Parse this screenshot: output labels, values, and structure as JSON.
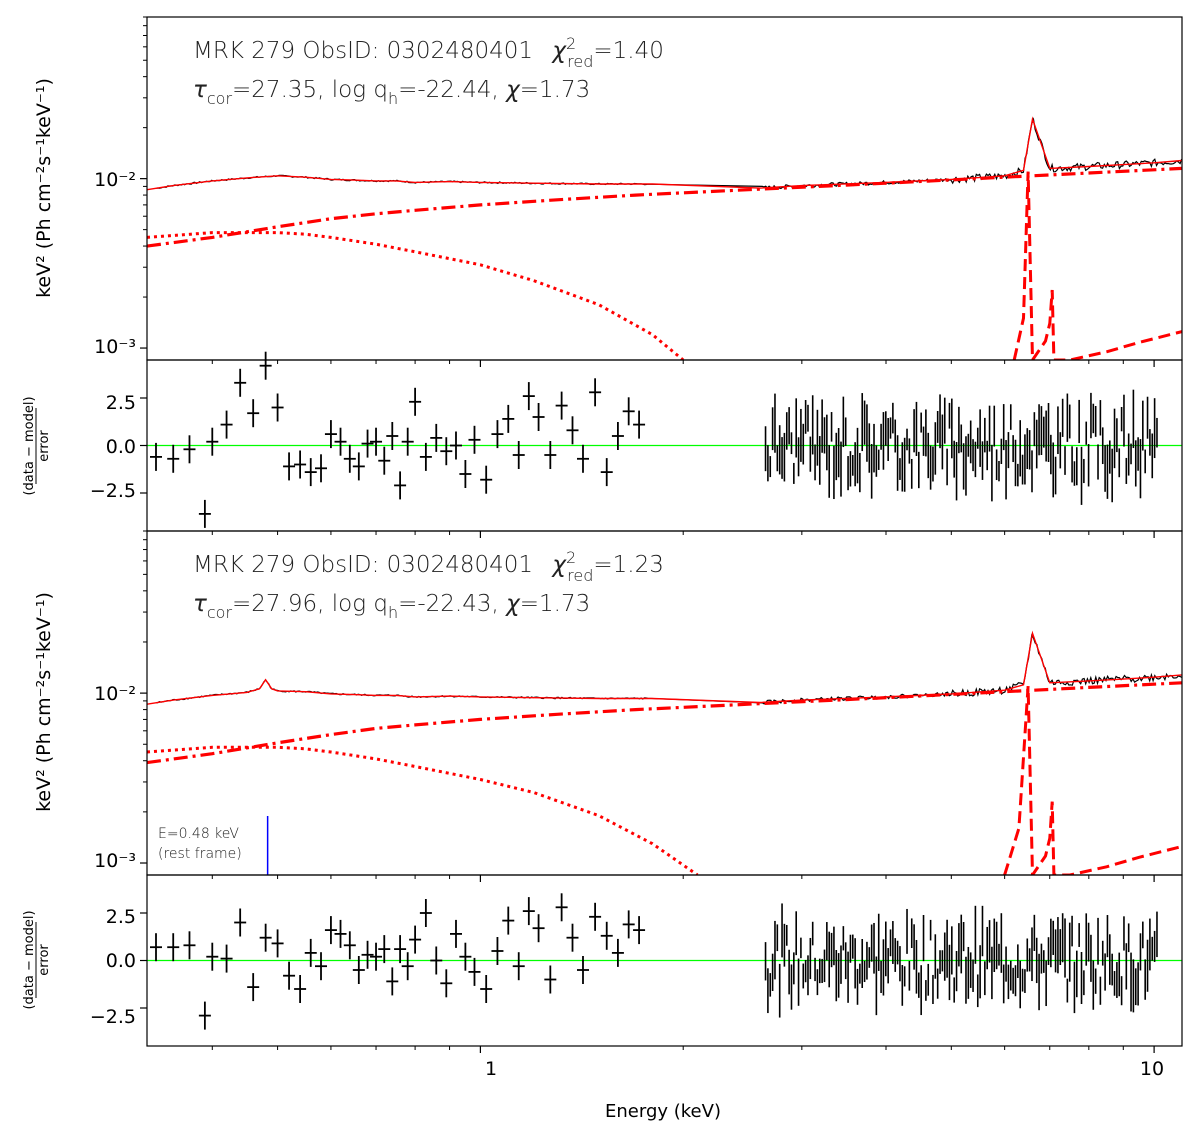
{
  "figure": {
    "xlabel": "Energy (keV)",
    "x_ticks": [
      "1",
      "10"
    ],
    "colors": {
      "data": "#000000",
      "model": "#ff0000",
      "zero_line": "#00ff00",
      "marker": "#0000ff"
    }
  },
  "panels": [
    {
      "title_line1": "MRK 279  ObsID: 0302480401",
      "chi_symbol": "χ",
      "chi_sup": "2",
      "chi_sub": "red",
      "chi_value": "=1.40",
      "tau_symbol": "τ",
      "tau_sub": "cor",
      "tau_value": "=27.35, log q",
      "q_sub": "h",
      "q_value": "=-22.44, ",
      "chi2_symbol": "χ",
      "chi2_value": "=1.73",
      "ylabel": "keV² (Ph cm⁻²s⁻¹keV⁻¹)",
      "y_ticks": [
        "10⁻²",
        "10⁻³"
      ]
    },
    {
      "title_line1": "MRK 279  ObsID: 0302480401",
      "chi_symbol": "χ",
      "chi_sup": "2",
      "chi_sub": "red",
      "chi_value": "=1.23",
      "tau_symbol": "τ",
      "tau_sub": "cor",
      "tau_value": "=27.96, log q",
      "q_sub": "h",
      "q_value": "=-22.43, ",
      "chi2_symbol": "χ",
      "chi2_value": "=1.73",
      "ylabel": "keV² (Ph cm⁻²s⁻¹keV⁻¹)",
      "y_ticks": [
        "10⁻²",
        "10⁻³"
      ],
      "marker_label_1": "E=0.48 keV",
      "marker_label_2": "(rest frame)"
    }
  ],
  "residual_panels": [
    {
      "ylabel_num": "(data − model)",
      "ylabel_den": "error",
      "y_ticks": [
        "2.5",
        "0.0",
        "−2.5"
      ]
    },
    {
      "ylabel_num": "(data − model)",
      "ylabel_den": "error",
      "y_ticks": [
        "2.5",
        "0.0",
        "−2.5"
      ]
    }
  ],
  "chart_data": [
    {
      "type": "line",
      "title": "MRK 279 ObsID: 0302480401 χ²red=1.40",
      "xscale": "log",
      "yscale": "log",
      "xlim": [
        0.32,
        11
      ],
      "ylim": [
        0.00085,
        0.09
      ],
      "xlabel": "Energy (keV)",
      "ylabel": "keV² (Ph cm⁻²s⁻¹keV⁻¹)",
      "series": [
        {
          "name": "data+total model (black/red solid)",
          "x": [
            0.32,
            0.35,
            0.4,
            0.45,
            0.5,
            0.55,
            0.6,
            0.65,
            0.7,
            0.75,
            0.8,
            0.9,
            1.0,
            1.2,
            1.5,
            1.8,
            2.6,
            3,
            4,
            5,
            6,
            6.4,
            6.6,
            7,
            8,
            9,
            10,
            11
          ],
          "values": [
            0.0086,
            0.0091,
            0.0097,
            0.0101,
            0.0104,
            0.0102,
            0.0099,
            0.0098,
            0.0097,
            0.0097,
            0.0095,
            0.0096,
            0.0095,
            0.0094,
            0.0093,
            0.0093,
            0.0088,
            0.0091,
            0.0095,
            0.0099,
            0.0104,
            0.0112,
            0.0225,
            0.0115,
            0.0118,
            0.0121,
            0.0124,
            0.0128
          ]
        },
        {
          "name": "dash-dot component",
          "x": [
            0.32,
            0.4,
            0.5,
            0.6,
            0.7,
            0.8,
            1.0,
            1.3,
            1.7,
            2.5,
            4,
            6,
            8,
            11
          ],
          "values": [
            0.004,
            0.0045,
            0.0052,
            0.0058,
            0.0062,
            0.0065,
            0.007,
            0.0075,
            0.008,
            0.0086,
            0.0094,
            0.0102,
            0.0108,
            0.0115
          ]
        },
        {
          "name": "dotted component",
          "x": [
            0.32,
            0.4,
            0.5,
            0.55,
            0.6,
            0.7,
            0.8,
            1.0,
            1.2,
            1.5,
            1.8,
            2.0
          ],
          "values": [
            0.0045,
            0.0048,
            0.0048,
            0.0047,
            0.0045,
            0.0041,
            0.0037,
            0.0031,
            0.0025,
            0.0018,
            0.0012,
            0.00085
          ]
        },
        {
          "name": "dashed Fe lines",
          "x": [
            6.2,
            6.4,
            6.5,
            6.6,
            6.9,
            7.0,
            7.06,
            7.1,
            7.5,
            8.5,
            9.5,
            11
          ],
          "values": [
            0.00085,
            0.0015,
            0.011,
            0.00085,
            0.0011,
            0.0014,
            0.0022,
            0.00085,
            0.00085,
            0.00095,
            0.00108,
            0.00125
          ]
        }
      ]
    },
    {
      "type": "scatter",
      "title": "Residuals (panel 1)",
      "xscale": "log",
      "xlim": [
        0.32,
        11
      ],
      "ylim": [
        -4.5,
        4.5
      ],
      "ylabel": "(data − model)/error",
      "x": [
        0.33,
        0.35,
        0.37,
        0.39,
        0.4,
        0.42,
        0.44,
        0.46,
        0.48,
        0.5,
        0.52,
        0.54,
        0.56,
        0.58,
        0.6,
        0.62,
        0.64,
        0.66,
        0.68,
        0.7,
        0.72,
        0.74,
        0.76,
        0.78,
        0.8,
        0.83,
        0.86,
        0.89,
        0.92,
        0.95,
        0.98,
        1.02,
        1.06,
        1.1,
        1.14,
        1.18,
        1.22,
        1.27,
        1.32,
        1.37,
        1.42,
        1.48,
        1.54,
        1.6,
        1.66,
        1.72
      ],
      "values": [
        -0.6,
        -0.7,
        -0.2,
        -3.6,
        0.2,
        1.1,
        3.3,
        1.7,
        4.2,
        2.0,
        -1.1,
        -1.0,
        -1.4,
        -1.2,
        0.6,
        0.2,
        -0.7,
        -1.1,
        0.1,
        0.2,
        -0.8,
        0.5,
        -2.1,
        0.2,
        2.3,
        -0.6,
        0.4,
        -0.3,
        0.0,
        -1.5,
        0.3,
        -1.8,
        0.6,
        1.4,
        -0.5,
        2.6,
        1.5,
        -0.5,
        2.1,
        0.8,
        -0.7,
        2.8,
        -1.4,
        0.5,
        1.8,
        1.1
      ]
    },
    {
      "type": "line",
      "title": "MRK 279 ObsID: 0302480401 χ²red=1.23",
      "xscale": "log",
      "yscale": "log",
      "xlim": [
        0.32,
        11
      ],
      "ylim": [
        0.00085,
        0.09
      ],
      "xlabel": "Energy (keV)",
      "ylabel": "keV² (Ph cm⁻²s⁻¹keV⁻¹)",
      "annotations": [
        "E=0.48 keV (rest frame)"
      ],
      "series": [
        {
          "name": "data+total model (black/red solid)",
          "x": [
            0.32,
            0.35,
            0.4,
            0.45,
            0.47,
            0.48,
            0.49,
            0.5,
            0.55,
            0.6,
            0.65,
            0.7,
            0.75,
            0.8,
            0.9,
            1.0,
            1.2,
            1.5,
            1.8,
            2.6,
            3,
            4,
            5,
            6,
            6.4,
            6.6,
            7,
            8,
            9,
            10,
            11
          ],
          "values": [
            0.0086,
            0.0091,
            0.0097,
            0.0101,
            0.0106,
            0.012,
            0.0106,
            0.0103,
            0.0102,
            0.0099,
            0.0098,
            0.0097,
            0.0097,
            0.0095,
            0.0096,
            0.0095,
            0.0094,
            0.0093,
            0.0093,
            0.0088,
            0.0091,
            0.0095,
            0.0099,
            0.0104,
            0.0112,
            0.0225,
            0.0115,
            0.0118,
            0.0121,
            0.0124,
            0.0128
          ]
        },
        {
          "name": "dash-dot component",
          "x": [
            0.32,
            0.4,
            0.5,
            0.6,
            0.7,
            0.8,
            1.0,
            1.3,
            1.7,
            2.5,
            4,
            6,
            8,
            11
          ],
          "values": [
            0.0039,
            0.0044,
            0.0051,
            0.0057,
            0.0062,
            0.0065,
            0.007,
            0.0075,
            0.008,
            0.0086,
            0.0094,
            0.0102,
            0.0108,
            0.0115
          ]
        },
        {
          "name": "dotted component",
          "x": [
            0.32,
            0.4,
            0.5,
            0.55,
            0.6,
            0.7,
            0.8,
            1.0,
            1.2,
            1.5,
            1.8,
            2.1
          ],
          "values": [
            0.0045,
            0.0048,
            0.0048,
            0.0047,
            0.0045,
            0.0041,
            0.0037,
            0.0031,
            0.0026,
            0.0019,
            0.0013,
            0.00085
          ]
        },
        {
          "name": "dashed Fe lines",
          "x": [
            6.0,
            6.3,
            6.5,
            6.6,
            6.9,
            7.0,
            7.06,
            7.1,
            7.5,
            8.5,
            9.5,
            11
          ],
          "values": [
            0.00085,
            0.0016,
            0.011,
            0.00085,
            0.0011,
            0.0014,
            0.0023,
            0.00085,
            0.00085,
            0.00095,
            0.00108,
            0.00125
          ]
        }
      ]
    },
    {
      "type": "scatter",
      "title": "Residuals (panel 2)",
      "xscale": "log",
      "xlim": [
        0.32,
        11
      ],
      "ylim": [
        -4.5,
        4.5
      ],
      "ylabel": "(data − model)/error",
      "x": [
        0.33,
        0.35,
        0.37,
        0.39,
        0.4,
        0.42,
        0.44,
        0.46,
        0.48,
        0.5,
        0.52,
        0.54,
        0.56,
        0.58,
        0.6,
        0.62,
        0.64,
        0.66,
        0.68,
        0.7,
        0.72,
        0.74,
        0.76,
        0.78,
        0.8,
        0.83,
        0.86,
        0.89,
        0.92,
        0.95,
        0.98,
        1.02,
        1.06,
        1.1,
        1.14,
        1.18,
        1.22,
        1.27,
        1.32,
        1.37,
        1.42,
        1.48,
        1.54,
        1.6,
        1.66,
        1.72
      ],
      "values": [
        0.7,
        0.7,
        0.8,
        -2.9,
        0.2,
        0.1,
        2.0,
        -1.4,
        1.2,
        0.9,
        -0.8,
        -1.5,
        0.4,
        -0.3,
        1.6,
        1.4,
        0.8,
        -0.5,
        0.3,
        0.2,
        0.6,
        -1.1,
        0.6,
        -0.3,
        1.1,
        2.5,
        0.0,
        -1.2,
        1.4,
        0.2,
        -0.6,
        -1.5,
        0.5,
        2.1,
        -0.3,
        2.6,
        1.7,
        -1.0,
        2.8,
        1.2,
        -0.5,
        2.3,
        1.3,
        0.4,
        1.9,
        1.6
      ]
    }
  ]
}
